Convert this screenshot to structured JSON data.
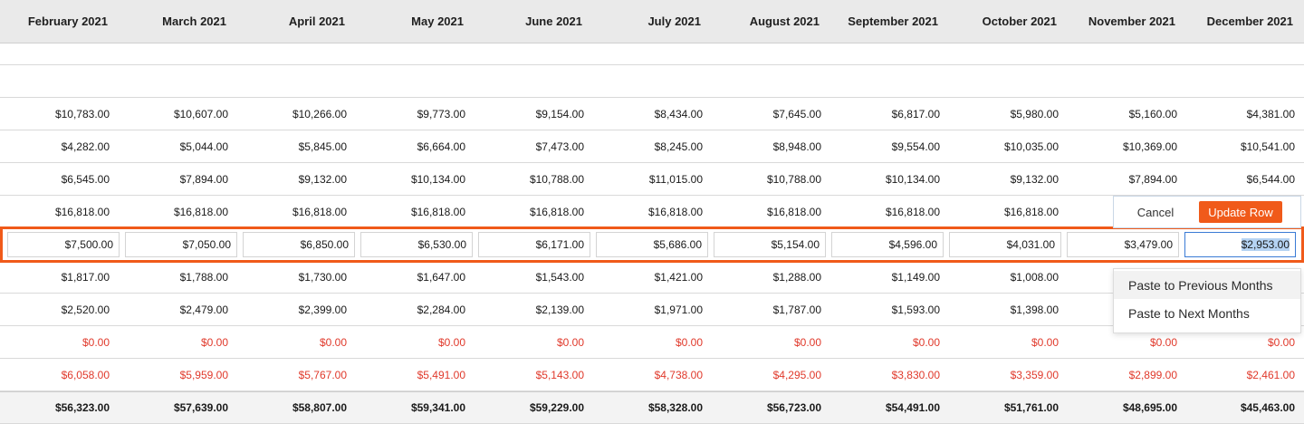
{
  "months": [
    "February 2021",
    "March 2021",
    "April 2021",
    "May 2021",
    "June 2021",
    "July 2021",
    "August 2021",
    "September 2021",
    "October 2021",
    "November 2021",
    "December 2021"
  ],
  "rows": [
    [
      "$10,783.00",
      "$10,607.00",
      "$10,266.00",
      "$9,773.00",
      "$9,154.00",
      "$8,434.00",
      "$7,645.00",
      "$6,817.00",
      "$5,980.00",
      "$5,160.00",
      "$4,381.00"
    ],
    [
      "$4,282.00",
      "$5,044.00",
      "$5,845.00",
      "$6,664.00",
      "$7,473.00",
      "$8,245.00",
      "$8,948.00",
      "$9,554.00",
      "$10,035.00",
      "$10,369.00",
      "$10,541.00"
    ],
    [
      "$6,545.00",
      "$7,894.00",
      "$9,132.00",
      "$10,134.00",
      "$10,788.00",
      "$11,015.00",
      "$10,788.00",
      "$10,134.00",
      "$9,132.00",
      "$7,894.00",
      "$6,544.00"
    ],
    [
      "$16,818.00",
      "$16,818.00",
      "$16,818.00",
      "$16,818.00",
      "$16,818.00",
      "$16,818.00",
      "$16,818.00",
      "$16,818.00",
      "$16,818.00",
      "",
      ""
    ]
  ],
  "edit_row": [
    "$7,500.00",
    "$7,050.00",
    "$6,850.00",
    "$6,530.00",
    "$6,171.00",
    "$5,686.00",
    "$5,154.00",
    "$4,596.00",
    "$4,031.00",
    "$3,479.00",
    "$2,953.00"
  ],
  "rows_after": [
    [
      "$1,817.00",
      "$1,788.00",
      "$1,730.00",
      "$1,647.00",
      "$1,543.00",
      "$1,421.00",
      "$1,288.00",
      "$1,149.00",
      "$1,008.00",
      "",
      ""
    ],
    [
      "$2,520.00",
      "$2,479.00",
      "$2,399.00",
      "$2,284.00",
      "$2,139.00",
      "$1,971.00",
      "$1,787.00",
      "$1,593.00",
      "$1,398.00",
      "",
      ""
    ]
  ],
  "red_rows": [
    [
      "$0.00",
      "$0.00",
      "$0.00",
      "$0.00",
      "$0.00",
      "$0.00",
      "$0.00",
      "$0.00",
      "$0.00",
      "$0.00",
      "$0.00"
    ],
    [
      "$6,058.00",
      "$5,959.00",
      "$5,767.00",
      "$5,491.00",
      "$5,143.00",
      "$4,738.00",
      "$4,295.00",
      "$3,830.00",
      "$3,359.00",
      "$2,899.00",
      "$2,461.00"
    ]
  ],
  "totals": [
    "$56,323.00",
    "$57,639.00",
    "$58,807.00",
    "$59,341.00",
    "$59,229.00",
    "$58,328.00",
    "$56,723.00",
    "$54,491.00",
    "$51,761.00",
    "$48,695.00",
    "$45,463.00"
  ],
  "actions": {
    "cancel": "Cancel",
    "update": "Update Row"
  },
  "menu": {
    "previous": "Paste to Previous Months",
    "next": "Paste to Next Months"
  },
  "colors": {
    "accent": "#f05a1a",
    "negative": "#e0392b",
    "selection": "#b5d3f3"
  }
}
